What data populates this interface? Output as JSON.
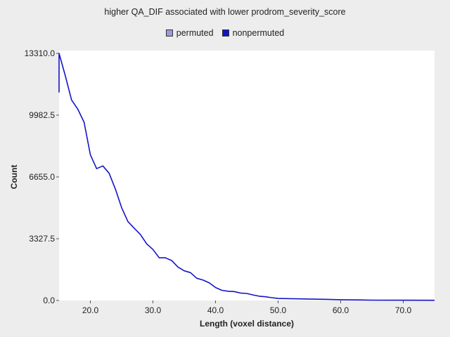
{
  "chart_data": {
    "type": "line",
    "title": "higher QA_DIF associated with lower prodrom_severity_score",
    "xlabel": "Length (voxel distance)",
    "ylabel": "Count",
    "xlim": [
      15,
      75
    ],
    "ylim": [
      0,
      13310
    ],
    "x_ticks": [
      20,
      30,
      40,
      50,
      60,
      70
    ],
    "x_tick_labels": [
      "20.0",
      "30.0",
      "40.0",
      "50.0",
      "60.0",
      "70.0"
    ],
    "y_ticks": [
      0,
      3327.5,
      6655,
      9982.5,
      13310
    ],
    "y_tick_labels": [
      "0.0",
      "3327.5",
      "6655.0",
      "9982.5",
      "13310.0"
    ],
    "legend_position": "top-center",
    "series": [
      {
        "name": "permuted",
        "color": "#9b9bd9",
        "x": [],
        "values": []
      },
      {
        "name": "nonpermuted",
        "color": "#1414c8",
        "x": [
          15,
          15,
          16,
          17,
          18,
          19,
          20,
          21,
          22,
          23,
          24,
          25,
          26,
          27,
          28,
          29,
          30,
          31,
          32,
          33,
          34,
          35,
          36,
          37,
          38,
          39,
          40,
          41,
          42,
          43,
          44,
          45,
          46,
          47,
          48,
          49,
          50,
          52,
          55,
          58,
          60,
          63,
          65,
          70,
          75
        ],
        "values": [
          11200,
          13310,
          12100,
          10800,
          10300,
          9600,
          7850,
          7100,
          7250,
          6850,
          6000,
          5000,
          4250,
          3900,
          3550,
          3050,
          2750,
          2300,
          2300,
          2150,
          1800,
          1600,
          1500,
          1200,
          1100,
          950,
          700,
          550,
          500,
          480,
          400,
          380,
          300,
          230,
          200,
          150,
          110,
          100,
          80,
          60,
          40,
          30,
          20,
          15,
          10
        ]
      }
    ]
  }
}
